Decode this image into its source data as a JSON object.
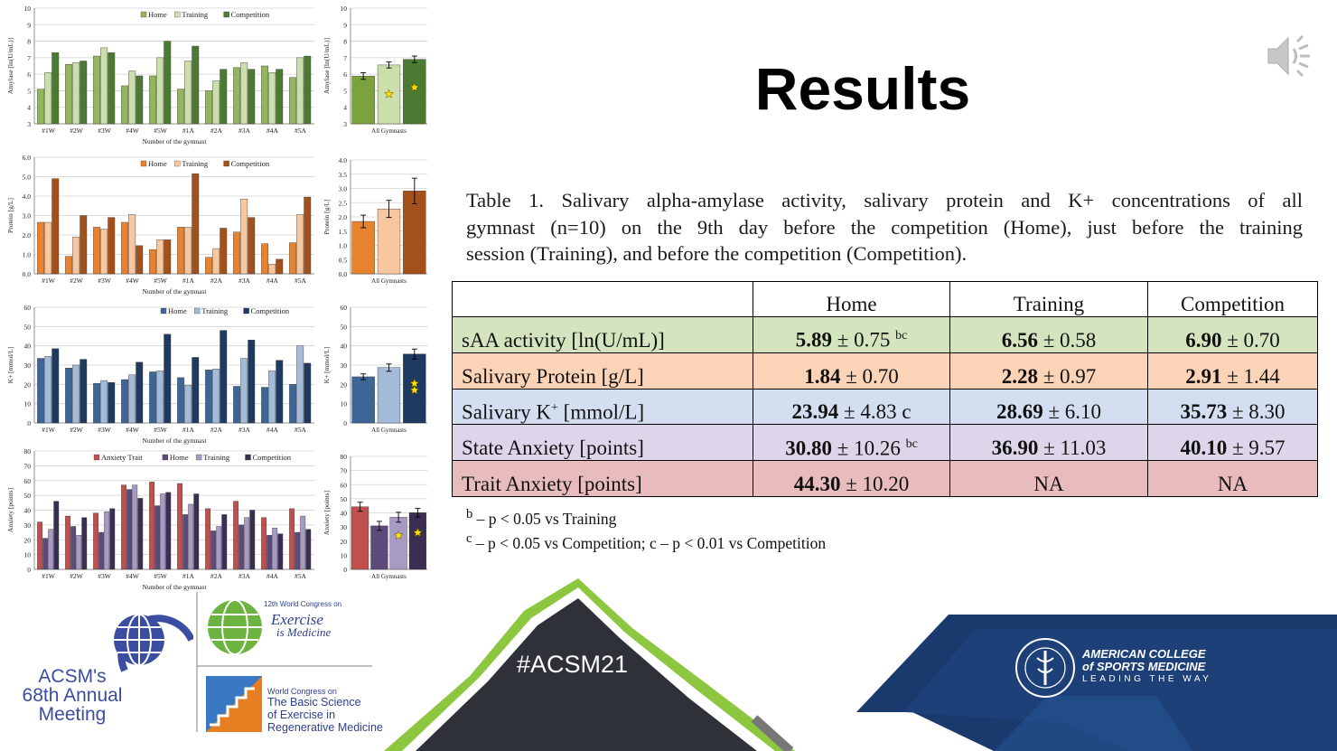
{
  "title": "Results",
  "caption_lines": [
    "Table 1. Salivary alpha-amylase activity, salivary protein and K+ concentrations of all",
    "gymnast (n=10) on the 9th day before the competition (Home), just before the training",
    "session (Training), and before the competition (Competition)."
  ],
  "table": {
    "headers": [
      "",
      "Home",
      "Training",
      "Competition"
    ],
    "rows": [
      {
        "label": "sAA activity [ln(U/mL)]",
        "bg": "#d4e4be",
        "cells": [
          {
            "bold": "5.89",
            "rest": " ± 0.75 ",
            "sup": "bc"
          },
          {
            "bold": "6.56",
            "rest": " ± 0.58",
            "sup": ""
          },
          {
            "bold": "6.90",
            "rest": " ± 0.70",
            "sup": ""
          }
        ]
      },
      {
        "label": "Salivary Protein [g/L]",
        "bg": "#fbd3b6",
        "cells": [
          {
            "bold": "1.84",
            "rest": " ± 0.70",
            "sup": ""
          },
          {
            "bold": "2.28",
            "rest": " ± 0.97",
            "sup": ""
          },
          {
            "bold": "2.91",
            "rest": " ± 1.44",
            "sup": ""
          }
        ]
      },
      {
        "label": "Salivary K",
        "label_sup": "+",
        "label_rest": " [mmol/L]",
        "bg": "#d3def1",
        "cells": [
          {
            "bold": "23.94",
            "rest": " ± 4.83 c",
            "sup": ""
          },
          {
            "bold": "28.69",
            "rest": " ± 6.10",
            "sup": ""
          },
          {
            "bold": "35.73",
            "rest": " ± 8.30",
            "sup": ""
          }
        ]
      },
      {
        "label": "State Anxiety [points]",
        "bg": "#ddd6ea",
        "cells": [
          {
            "bold": "30.80",
            "rest": " ± 10.26 ",
            "sup": "bc"
          },
          {
            "bold": "36.90",
            "rest": " ± 11.03",
            "sup": ""
          },
          {
            "bold": "40.10",
            "rest": " ± 9.57",
            "sup": ""
          }
        ]
      },
      {
        "label": "Trait Anxiety [points]",
        "bg": "#e8bcbc",
        "cells": [
          {
            "bold": "44.30",
            "rest": " ± 10.20",
            "sup": ""
          },
          {
            "plain": "NA"
          },
          {
            "plain": "NA"
          }
        ]
      }
    ]
  },
  "footnotes": [
    {
      "sup": "b",
      "text": " – p < 0.05 vs Training"
    },
    {
      "sup": "c",
      "text": " – p < 0.05 vs Competition; c – p < 0.01 vs Competition"
    }
  ],
  "footer": {
    "acsm_lines": [
      "ACSM's",
      "68th Annual",
      "Meeting"
    ],
    "world_congress_1": [
      "12th World Congress on",
      "Exercise",
      "is Medicine"
    ],
    "world_congress_2": [
      "World Congress on",
      "The Basic Science",
      "of Exercise in",
      "Regenerative Medicine"
    ],
    "hashtag": "#ACSM21",
    "college": [
      "AMERICAN COLLEGE",
      "of SPORTS MEDICINE",
      "LEADING THE WAY"
    ]
  },
  "chart_data": [
    {
      "type": "bar",
      "id": "amylase",
      "categories": [
        "#1W",
        "#2W",
        "#3W",
        "#4W",
        "#5W",
        "#1A",
        "#2A",
        "#3A",
        "#4A",
        "#5A"
      ],
      "series": [
        {
          "name": "Home",
          "values": [
            5.1,
            6.6,
            7.1,
            5.3,
            5.9,
            5.1,
            5.0,
            6.4,
            6.5,
            5.8
          ]
        },
        {
          "name": "Training",
          "values": [
            6.1,
            6.7,
            7.6,
            6.2,
            7.0,
            6.8,
            5.6,
            6.7,
            6.1,
            7.0
          ]
        },
        {
          "name": "Competition",
          "values": [
            7.3,
            6.8,
            7.3,
            5.9,
            8.0,
            7.7,
            6.3,
            6.3,
            6.3,
            7.1
          ]
        }
      ],
      "colors": [
        "#93b55e",
        "#cbdfac",
        "#4d7a32"
      ],
      "ylabel": "Amylase [ln(U/mL)]",
      "xlabel": "Number of the gymnast",
      "ylim": [
        3,
        10
      ],
      "yticks": [
        3,
        4,
        5,
        6,
        7,
        8,
        9,
        10
      ],
      "ytick_decimals": 0
    },
    {
      "type": "bar",
      "id": "amylase-summary",
      "categories": [
        "Home",
        "Training",
        "Competition"
      ],
      "values": [
        5.89,
        6.56,
        6.9
      ],
      "errors": [
        0.2,
        0.18,
        0.2
      ],
      "colors": [
        "#7ba23e",
        "#cbdfac",
        "#4d7a32"
      ],
      "ylabel": "Amylase [ln(U/mL)]",
      "xlabel": "All Gymnasts",
      "ylim": [
        3,
        10
      ],
      "yticks": [
        3,
        4,
        5,
        6,
        7,
        8,
        9,
        10
      ],
      "ytick_decimals": 0,
      "markers": [
        {
          "bar": 1,
          "value": 4.8
        },
        {
          "bar": 2,
          "value": 5.2
        }
      ]
    },
    {
      "type": "bar",
      "id": "protein",
      "categories": [
        "#1W",
        "#2W",
        "#3W",
        "#4W",
        "#5W",
        "#1A",
        "#2A",
        "#3A",
        "#4A",
        "#5A"
      ],
      "series": [
        {
          "name": "Home",
          "values": [
            2.65,
            0.9,
            2.4,
            2.65,
            1.25,
            2.4,
            0.85,
            2.15,
            1.55,
            1.6
          ]
        },
        {
          "name": "Training",
          "values": [
            2.65,
            1.9,
            2.3,
            3.05,
            1.75,
            2.4,
            1.3,
            3.85,
            0.5,
            3.05
          ]
        },
        {
          "name": "Competition",
          "values": [
            4.9,
            3.0,
            2.9,
            1.45,
            1.75,
            5.15,
            2.35,
            2.9,
            0.75,
            3.95
          ]
        }
      ],
      "colors": [
        "#e8822e",
        "#f9c79e",
        "#a3501a"
      ],
      "ylabel": "Protein [g/L]",
      "xlabel": "Number of the gymnast",
      "ylim": [
        0,
        6
      ],
      "yticks": [
        0,
        1,
        2,
        3,
        4,
        5,
        6
      ],
      "ytick_decimals": 1
    },
    {
      "type": "bar",
      "id": "protein-summary",
      "categories": [
        "Home",
        "Training",
        "Competition"
      ],
      "values": [
        1.84,
        2.28,
        2.91
      ],
      "errors": [
        0.22,
        0.3,
        0.45
      ],
      "colors": [
        "#e8822e",
        "#f9c79e",
        "#a3501a"
      ],
      "ylabel": "Protein [g/L]",
      "xlabel": "All Gymnasts",
      "ylim": [
        0,
        4
      ],
      "yticks": [
        0,
        0.5,
        1,
        1.5,
        2,
        2.5,
        3,
        3.5,
        4
      ],
      "ytick_decimals": 1,
      "markers": []
    },
    {
      "type": "bar",
      "id": "potassium",
      "categories": [
        "#1W",
        "#2W",
        "#3W",
        "#4W",
        "#5W",
        "#1A",
        "#2A",
        "#3A",
        "#4A",
        "#5A"
      ],
      "series": [
        {
          "name": "Home",
          "values": [
            33.5,
            28.5,
            20.5,
            22.5,
            26.5,
            23.5,
            27.5,
            19.0,
            18.5,
            20.0
          ]
        },
        {
          "name": "Training",
          "values": [
            34.5,
            30.0,
            22.0,
            25.0,
            27.0,
            19.5,
            28.0,
            33.5,
            27.0,
            40.0
          ]
        },
        {
          "name": "Competition",
          "values": [
            38.5,
            33.0,
            21.0,
            31.5,
            46.0,
            34.0,
            48.0,
            43.0,
            32.5,
            31.0
          ]
        }
      ],
      "colors": [
        "#3d6596",
        "#a3bad9",
        "#1f3a60"
      ],
      "ylabel": "K+ [mmol/L]",
      "xlabel": "Number of the gymnast",
      "ylim": [
        0,
        60
      ],
      "yticks": [
        0,
        10,
        20,
        30,
        40,
        50,
        60
      ],
      "ytick_decimals": 0
    },
    {
      "type": "bar",
      "id": "potassium-summary",
      "categories": [
        "Home",
        "Training",
        "Competition"
      ],
      "values": [
        23.94,
        28.69,
        35.73
      ],
      "errors": [
        1.5,
        1.9,
        2.6
      ],
      "colors": [
        "#3d6596",
        "#a3bad9",
        "#1f3a60"
      ],
      "ylabel": "K+ [mmol/L]",
      "xlabel": "All Gymnasts",
      "ylim": [
        0,
        60
      ],
      "yticks": [
        0,
        10,
        20,
        30,
        40,
        50,
        60
      ],
      "ytick_decimals": 0,
      "markers": [
        {
          "bar": 2,
          "value": 20.5
        },
        {
          "bar": 2,
          "value": 17.0
        }
      ]
    },
    {
      "type": "bar",
      "id": "anxiety",
      "categories": [
        "#1W",
        "#2W",
        "#3W",
        "#4W",
        "#5W",
        "#1A",
        "#2A",
        "#3A",
        "#4A",
        "#5A"
      ],
      "series": [
        {
          "name": "Anxiety Trait",
          "values": [
            32,
            36,
            38,
            57,
            59,
            58,
            41,
            46,
            35,
            41
          ]
        },
        {
          "name": "Home",
          "values": [
            21,
            29,
            25,
            54,
            43,
            37,
            26,
            30,
            23,
            25
          ]
        },
        {
          "name": "Training",
          "values": [
            27,
            23,
            39,
            57,
            51,
            44,
            29,
            35,
            28,
            36
          ]
        },
        {
          "name": "Competition",
          "values": [
            46,
            35,
            41,
            48,
            52,
            51,
            37,
            40,
            24,
            27
          ]
        }
      ],
      "colors": [
        "#c0504d",
        "#5e4a7a",
        "#a79bc4",
        "#3a2e52"
      ],
      "ylabel": "Anxiety [points]",
      "xlabel": "Number of the gymnast",
      "ylim": [
        0,
        80
      ],
      "yticks": [
        0,
        10,
        20,
        30,
        40,
        50,
        60,
        70,
        80
      ],
      "ytick_decimals": 0
    },
    {
      "type": "bar",
      "id": "anxiety-summary",
      "categories": [
        "Trait",
        "Home",
        "Training",
        "Competition"
      ],
      "values": [
        44.3,
        30.8,
        36.9,
        40.1
      ],
      "errors": [
        3.2,
        3.2,
        3.5,
        3.0
      ],
      "colors": [
        "#c0504d",
        "#5e4a7a",
        "#a79bc4",
        "#3a2e52"
      ],
      "ylabel": "Anxiety [points]",
      "xlabel": "All Gymnasts",
      "ylim": [
        0,
        80
      ],
      "yticks": [
        0,
        10,
        20,
        30,
        40,
        50,
        60,
        70,
        80
      ],
      "ytick_decimals": 0,
      "markers": [
        {
          "bar": 2,
          "value": 24
        },
        {
          "bar": 3,
          "value": 26
        }
      ]
    }
  ]
}
